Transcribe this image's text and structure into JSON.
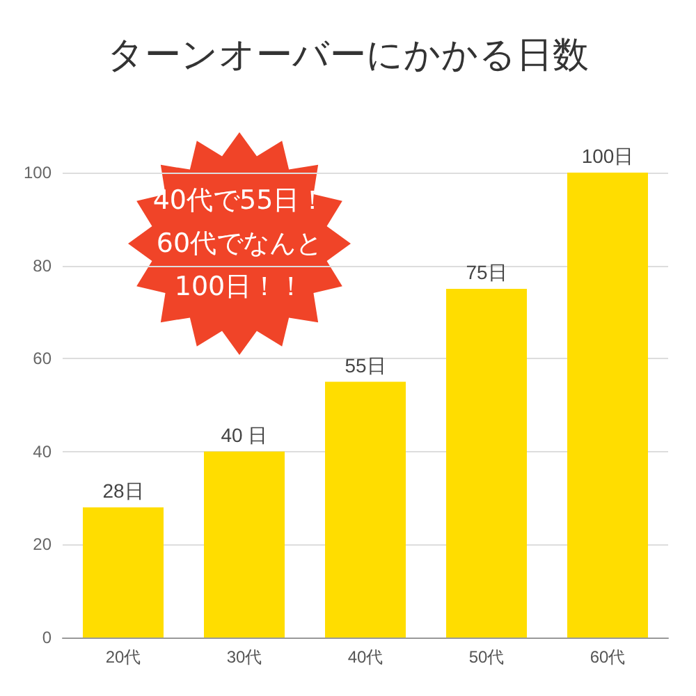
{
  "chart_data": {
    "type": "bar",
    "title": "ターンオーバーにかかる日数",
    "categories": [
      "20代",
      "30代",
      "40代",
      "50代",
      "60代"
    ],
    "values": [
      28,
      40,
      55,
      75,
      100
    ],
    "value_labels": [
      "28日",
      "40 日",
      "55日",
      "75日",
      "100日"
    ],
    "color": "#ffdd00",
    "ylim": [
      0,
      100
    ],
    "yticks": [
      0,
      20,
      40,
      60,
      80,
      100
    ],
    "grid": "y",
    "annotations": [
      "40代で55日！\n60代でなんと\n100日！！"
    ]
  }
}
